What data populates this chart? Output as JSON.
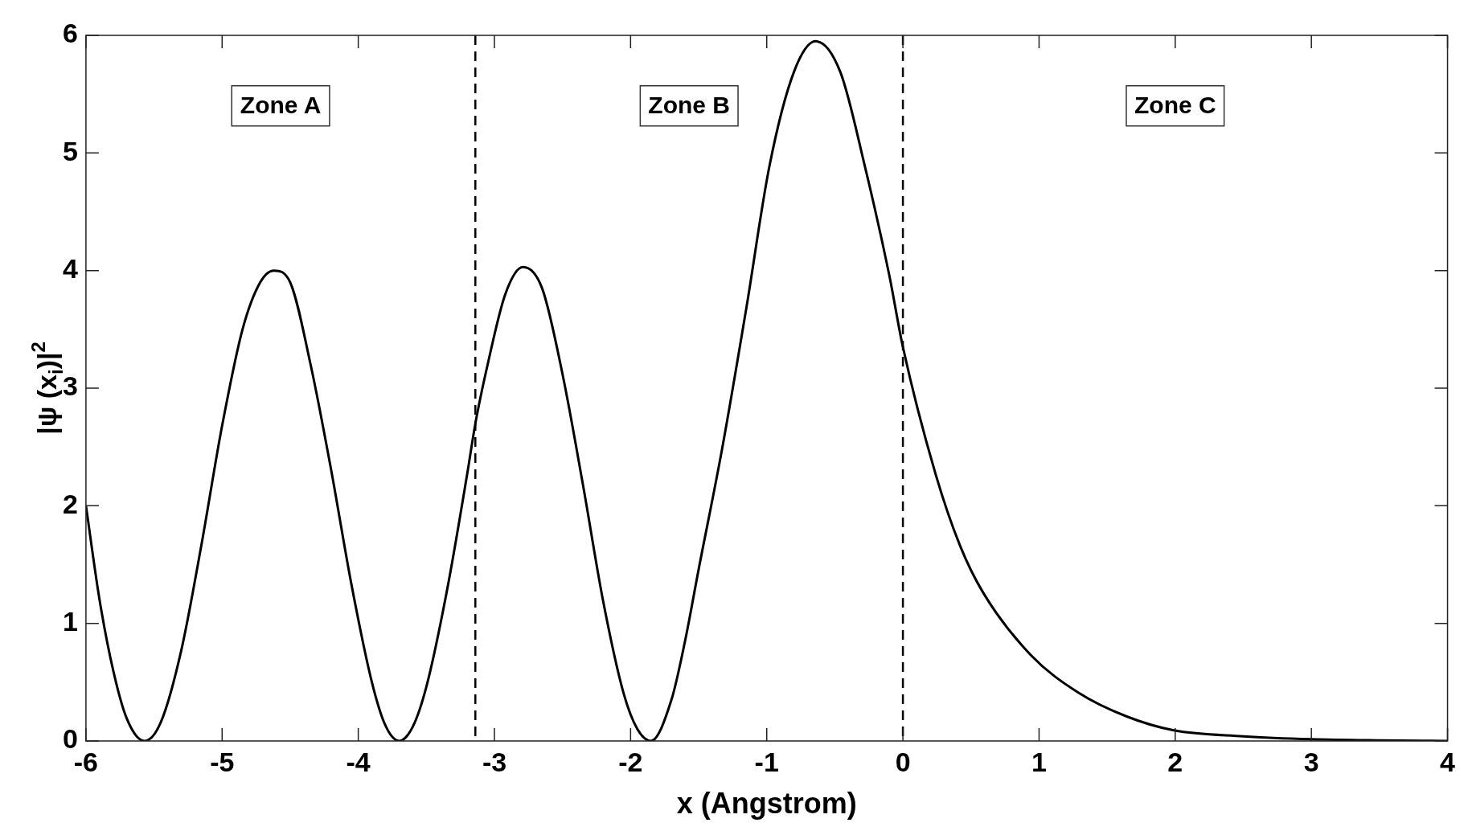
{
  "chart_data": {
    "type": "line",
    "xlabel": "x (Angstrom)",
    "ylabel": "|ψ (x$_{i}$)|$^{2}$",
    "annotations": [
      "Zone A",
      "Zone B",
      "Zone C"
    ],
    "x": [
      -6,
      -5.9,
      -5.8,
      -5.7,
      -5.57,
      -5.45,
      -5.3,
      -5.15,
      -5,
      -4.85,
      -4.72,
      -4.62,
      -4.5,
      -4.35,
      -4.2,
      -4.05,
      -3.9,
      -3.8,
      -3.7,
      -3.6,
      -3.5,
      -3.35,
      -3.2,
      -3.14,
      -3.05,
      -2.92,
      -2.79,
      -2.65,
      -2.5,
      -2.35,
      -2.2,
      -2.05,
      -1.95,
      -1.85,
      -1.7,
      -1.6,
      -1.5,
      -1.33,
      -1.15,
      -0.98,
      -0.8,
      -0.64,
      -0.46,
      -0.28,
      -0.1,
      0,
      0.24,
      0.42,
      0.59,
      0.94,
      1.29,
      1.64,
      1.99,
      2.5,
      3,
      3.5,
      4
    ],
    "series": [
      {
        "color": "#000000",
        "values": [
          2.0,
          1.2,
          0.6,
          0.19,
          0,
          0.16,
          0.77,
          1.68,
          2.68,
          3.5,
          3.9,
          4.0,
          3.9,
          3.2,
          2.31,
          1.33,
          0.5,
          0.13,
          0,
          0.12,
          0.46,
          1.27,
          2.27,
          2.7,
          3.2,
          3.8,
          4.03,
          3.85,
          3.12,
          2.18,
          1.18,
          0.4,
          0.1,
          0,
          0.35,
          0.85,
          1.46,
          2.47,
          3.68,
          4.89,
          5.69,
          5.95,
          5.69,
          4.89,
          3.96,
          3.35,
          2.27,
          1.66,
          1.26,
          0.73,
          0.41,
          0.21,
          0.09,
          0.04,
          0.015,
          0.005,
          0
        ]
      }
    ],
    "xlim": [
      -6,
      4
    ],
    "xticks": [
      -6,
      -5,
      -4,
      -3,
      -2,
      -1,
      0,
      1,
      2,
      3,
      4
    ],
    "ylim": [
      0,
      6
    ],
    "yticks": [
      0,
      1,
      2,
      3,
      4,
      5,
      6
    ],
    "ref_lines": [
      {
        "axis": "x",
        "value": -3.14,
        "color": "#000000",
        "line_style": "dashed"
      },
      {
        "axis": "x",
        "value": 0,
        "color": "#000000",
        "line_style": "dashed"
      }
    ],
    "grid": false,
    "legend": false,
    "marker": "none",
    "line_style": "solid"
  }
}
